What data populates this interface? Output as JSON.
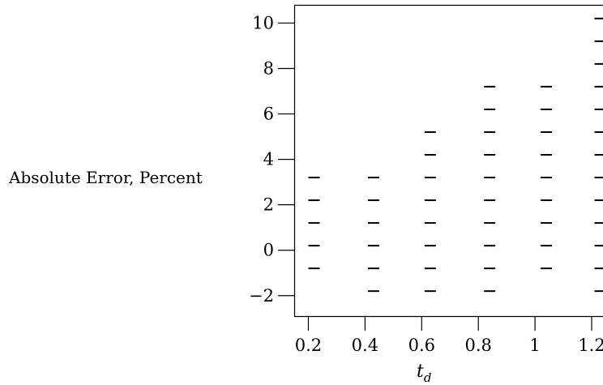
{
  "chart_data": {
    "type": "scatter",
    "marker": "horizontal-dash",
    "title": "",
    "xlabel": "t",
    "xlabel_subscript": "d",
    "ylabel": "Absolute Error, Percent",
    "xlim": [
      0.15,
      1.24
    ],
    "ylim": [
      -2.9,
      10.8
    ],
    "xticks": [
      0.2,
      0.4,
      0.6,
      0.8,
      1,
      1.2
    ],
    "xtick_labels": [
      "0.2",
      "0.4",
      "0.6",
      "0.8",
      "1",
      "1.2"
    ],
    "yticks": [
      -2,
      0,
      2,
      4,
      6,
      8,
      10
    ],
    "ytick_labels": [
      "−2",
      "0",
      "2",
      "4",
      "6",
      "8",
      "10"
    ],
    "grid": false,
    "series": [
      {
        "points": [
          {
            "x": 0.22,
            "y": 3.2
          },
          {
            "x": 0.22,
            "y": 2.2
          },
          {
            "x": 0.22,
            "y": 1.2
          },
          {
            "x": 0.22,
            "y": 0.2
          },
          {
            "x": 0.22,
            "y": -0.8
          },
          {
            "x": 0.43,
            "y": 3.2
          },
          {
            "x": 0.43,
            "y": 2.2
          },
          {
            "x": 0.43,
            "y": 1.2
          },
          {
            "x": 0.43,
            "y": 0.2
          },
          {
            "x": 0.43,
            "y": -0.8
          },
          {
            "x": 0.43,
            "y": -1.8
          },
          {
            "x": 0.63,
            "y": 5.2
          },
          {
            "x": 0.63,
            "y": 4.2
          },
          {
            "x": 0.63,
            "y": 3.2
          },
          {
            "x": 0.63,
            "y": 2.2
          },
          {
            "x": 0.63,
            "y": 1.2
          },
          {
            "x": 0.63,
            "y": 0.2
          },
          {
            "x": 0.63,
            "y": -0.8
          },
          {
            "x": 0.63,
            "y": -1.8
          },
          {
            "x": 0.84,
            "y": 7.2
          },
          {
            "x": 0.84,
            "y": 6.2
          },
          {
            "x": 0.84,
            "y": 5.2
          },
          {
            "x": 0.84,
            "y": 4.2
          },
          {
            "x": 0.84,
            "y": 3.2
          },
          {
            "x": 0.84,
            "y": 2.2
          },
          {
            "x": 0.84,
            "y": 1.2
          },
          {
            "x": 0.84,
            "y": 0.2
          },
          {
            "x": 0.84,
            "y": -0.8
          },
          {
            "x": 0.84,
            "y": -1.8
          },
          {
            "x": 1.04,
            "y": 7.2
          },
          {
            "x": 1.04,
            "y": 6.2
          },
          {
            "x": 1.04,
            "y": 5.2
          },
          {
            "x": 1.04,
            "y": 4.2
          },
          {
            "x": 1.04,
            "y": 3.2
          },
          {
            "x": 1.04,
            "y": 2.2
          },
          {
            "x": 1.04,
            "y": 1.2
          },
          {
            "x": 1.04,
            "y": 0.2
          },
          {
            "x": 1.04,
            "y": -0.8
          },
          {
            "x": 1.23,
            "y": 10.2
          },
          {
            "x": 1.23,
            "y": 9.2
          },
          {
            "x": 1.23,
            "y": 8.2
          },
          {
            "x": 1.23,
            "y": 7.2
          },
          {
            "x": 1.23,
            "y": 6.2
          },
          {
            "x": 1.23,
            "y": 5.2
          },
          {
            "x": 1.23,
            "y": 4.2
          },
          {
            "x": 1.23,
            "y": 3.2
          },
          {
            "x": 1.23,
            "y": 2.2
          },
          {
            "x": 1.23,
            "y": 1.2
          },
          {
            "x": 1.23,
            "y": 0.2
          },
          {
            "x": 1.23,
            "y": -0.8
          },
          {
            "x": 1.23,
            "y": -1.8
          }
        ]
      }
    ]
  }
}
